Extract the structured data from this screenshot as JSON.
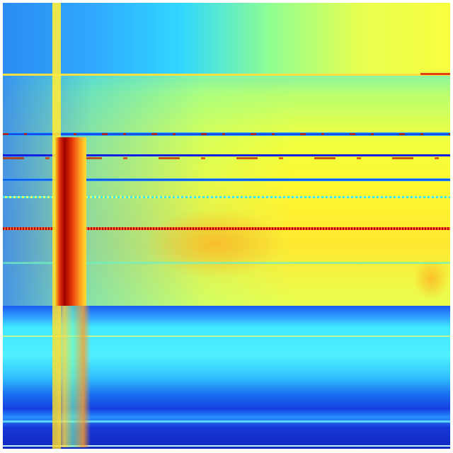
{
  "colormap": [
    "#00008f",
    "#0000ff",
    "#00ffff",
    "#ffff00",
    "#ff0000",
    "#800000"
  ],
  "colors": {
    "background": "#ffffff",
    "low": "#1430d8",
    "mid": "#40e8ff",
    "high": "#fff830",
    "peak": "#a00000"
  }
}
